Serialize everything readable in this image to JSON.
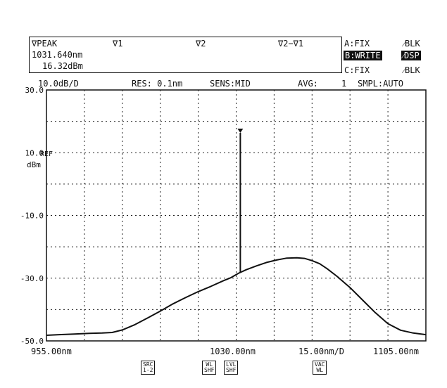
{
  "marker_panel": {
    "label": "∇PEAK",
    "wavelength": "1031.640nm",
    "level": "16.32dBm",
    "v1": "∇1",
    "v2": "∇2",
    "v2v1": "∇2−∇1"
  },
  "trace_panel": {
    "a": "A:FIX",
    "a_mode": "⁄BLK",
    "b": "B:WRITE",
    "b_mode": "⁄DSP",
    "c": "C:FIX",
    "c_mode": "⁄BLK"
  },
  "settings": {
    "scale": "10.0dB/D",
    "res": "RES: 0.1nm",
    "sens": "SENS:MID",
    "avg_label": "AVG:",
    "avg_value": "1",
    "smpl": "SMPL:AUTO"
  },
  "footer": {
    "start": "955.00nm",
    "center": "1030.00nm",
    "span": "15.00nm/D",
    "stop": "1105.00nm"
  },
  "softkeys": [
    {
      "top": "SRC",
      "bottom": "1-2"
    },
    {
      "top": "WL",
      "bottom": "SHF"
    },
    {
      "top": "LVL",
      "bottom": "SHF"
    },
    {
      "top": "VAC",
      "bottom": "WL"
    }
  ],
  "ref_label": "REF",
  "unit_label": "dBm",
  "chart_data": {
    "type": "line",
    "xlabel": "",
    "ylabel": "dBm",
    "xlim": [
      955,
      1105
    ],
    "ylim": [
      -50,
      30
    ],
    "x_unit": "nm",
    "y_ticks": [
      "30.0",
      "10.0",
      "-10.0",
      "-30.0",
      "-50.0"
    ],
    "grid": true,
    "series": [
      {
        "x": [
          955,
          960,
          966,
          972,
          977,
          981,
          985,
          990,
          995,
          1000,
          1005,
          1010,
          1015,
          1020,
          1025,
          1028,
          1031,
          1034,
          1038,
          1042,
          1046,
          1050,
          1054,
          1057,
          1060,
          1063,
          1066,
          1070,
          1075,
          1080,
          1085,
          1090,
          1095,
          1100,
          1105
        ],
        "y": [
          -48.2,
          -48.0,
          -47.8,
          -47.6,
          -47.5,
          -47.3,
          -46.5,
          -44.8,
          -42.7,
          -40.5,
          -38.2,
          -36.2,
          -34.3,
          -32.6,
          -30.8,
          -29.8,
          -28.4,
          -27.3,
          -26.1,
          -25.0,
          -24.2,
          -23.6,
          -23.5,
          -23.7,
          -24.4,
          -25.4,
          -27.0,
          -29.5,
          -33.0,
          -37.0,
          -41.0,
          -44.5,
          -46.6,
          -47.5,
          -48.0
        ]
      }
    ],
    "peak": {
      "x": 1031.64,
      "y": 16.32
    }
  }
}
